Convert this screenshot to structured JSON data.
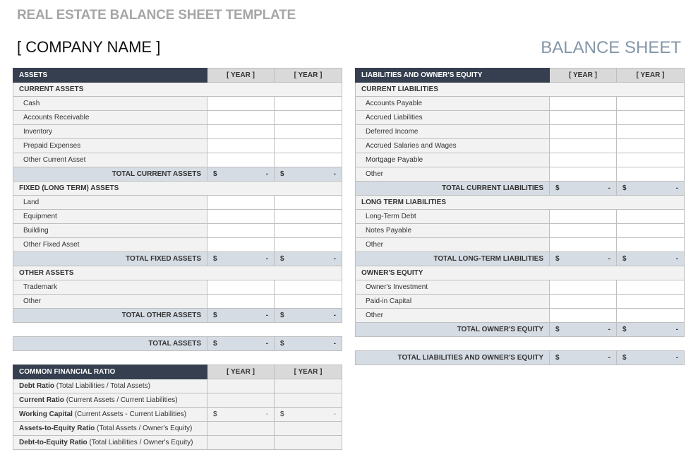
{
  "title": "REAL ESTATE BALANCE SHEET TEMPLATE",
  "company": "[ COMPANY NAME ]",
  "sheet_label": "BALANCE SHEET",
  "colors": {
    "header": "#353f4f",
    "year_header": "#d9d9d9",
    "section": "#f2f2f2",
    "total": "#d6dce4",
    "accent_text": "#8497a8"
  },
  "currency": "$",
  "empty_value": "-",
  "assets": {
    "header": "ASSETS",
    "years": [
      "[ YEAR ]",
      "[ YEAR ]"
    ],
    "rows": [
      {
        "type": "sec",
        "label": "CURRENT ASSETS"
      },
      {
        "type": "item",
        "label": "Cash"
      },
      {
        "type": "item",
        "label": "Accounts Receivable"
      },
      {
        "type": "item",
        "label": "Inventory"
      },
      {
        "type": "item",
        "label": "Prepaid Expenses"
      },
      {
        "type": "item",
        "label": "Other Current Asset"
      },
      {
        "type": "tot",
        "label": "TOTAL CURRENT ASSETS"
      },
      {
        "type": "sec",
        "label": "FIXED (LONG TERM) ASSETS"
      },
      {
        "type": "item",
        "label": "Land"
      },
      {
        "type": "item",
        "label": "Equipment"
      },
      {
        "type": "item",
        "label": "Building"
      },
      {
        "type": "item",
        "label": "Other Fixed Asset"
      },
      {
        "type": "tot",
        "label": "TOTAL FIXED ASSETS"
      },
      {
        "type": "sec",
        "label": "OTHER ASSETS"
      },
      {
        "type": "item",
        "label": "Trademark"
      },
      {
        "type": "item",
        "label": "Other"
      },
      {
        "type": "tot",
        "label": "TOTAL OTHER ASSETS"
      }
    ],
    "grand_total": "TOTAL ASSETS"
  },
  "liabilities": {
    "header": "LIABILITIES AND OWNER'S EQUITY",
    "years": [
      "[ YEAR ]",
      "[ YEAR ]"
    ],
    "rows": [
      {
        "type": "sec",
        "label": "CURRENT LIABILITIES"
      },
      {
        "type": "item",
        "label": "Accounts Payable"
      },
      {
        "type": "item",
        "label": "Accrued Liabilities"
      },
      {
        "type": "item",
        "label": "Deferred Income"
      },
      {
        "type": "item",
        "label": "Accrued Salaries and Wages"
      },
      {
        "type": "item",
        "label": "Mortgage Payable"
      },
      {
        "type": "item",
        "label": "Other"
      },
      {
        "type": "tot",
        "label": "TOTAL CURRENT LIABILITIES"
      },
      {
        "type": "sec",
        "label": "LONG TERM LIABILITIES"
      },
      {
        "type": "item",
        "label": "Long-Term Debt"
      },
      {
        "type": "item",
        "label": "Notes Payable"
      },
      {
        "type": "item",
        "label": "Other"
      },
      {
        "type": "tot",
        "label": "TOTAL LONG-TERM LIABILITIES"
      },
      {
        "type": "sec",
        "label": "OWNER'S EQUITY"
      },
      {
        "type": "item",
        "label": "Owner's Investment"
      },
      {
        "type": "item",
        "label": "Paid-in Capital"
      },
      {
        "type": "item",
        "label": "Other"
      },
      {
        "type": "tot",
        "label": "TOTAL OWNER'S EQUITY"
      }
    ],
    "grand_total": "TOTAL LIABILITIES AND OWNER'S EQUITY"
  },
  "ratios": {
    "header": "COMMON FINANCIAL RATIO",
    "years": [
      "[ YEAR ]",
      "[ YEAR ]"
    ],
    "rows": [
      {
        "name": "Debt Ratio",
        "formula": "(Total Liabilities / Total Assets)",
        "money": false
      },
      {
        "name": "Current Ratio",
        "formula": "(Current Assets / Current Liabilities)",
        "money": false
      },
      {
        "name": "Working Capital",
        "formula": "(Current Assets - Current Liabilities)",
        "money": true
      },
      {
        "name": "Assets-to-Equity Ratio",
        "formula": "(Total Assets / Owner's Equity)",
        "money": false
      },
      {
        "name": "Debt-to-Equity Ratio",
        "formula": "(Total Liabilities / Owner's Equity)",
        "money": false
      }
    ]
  }
}
